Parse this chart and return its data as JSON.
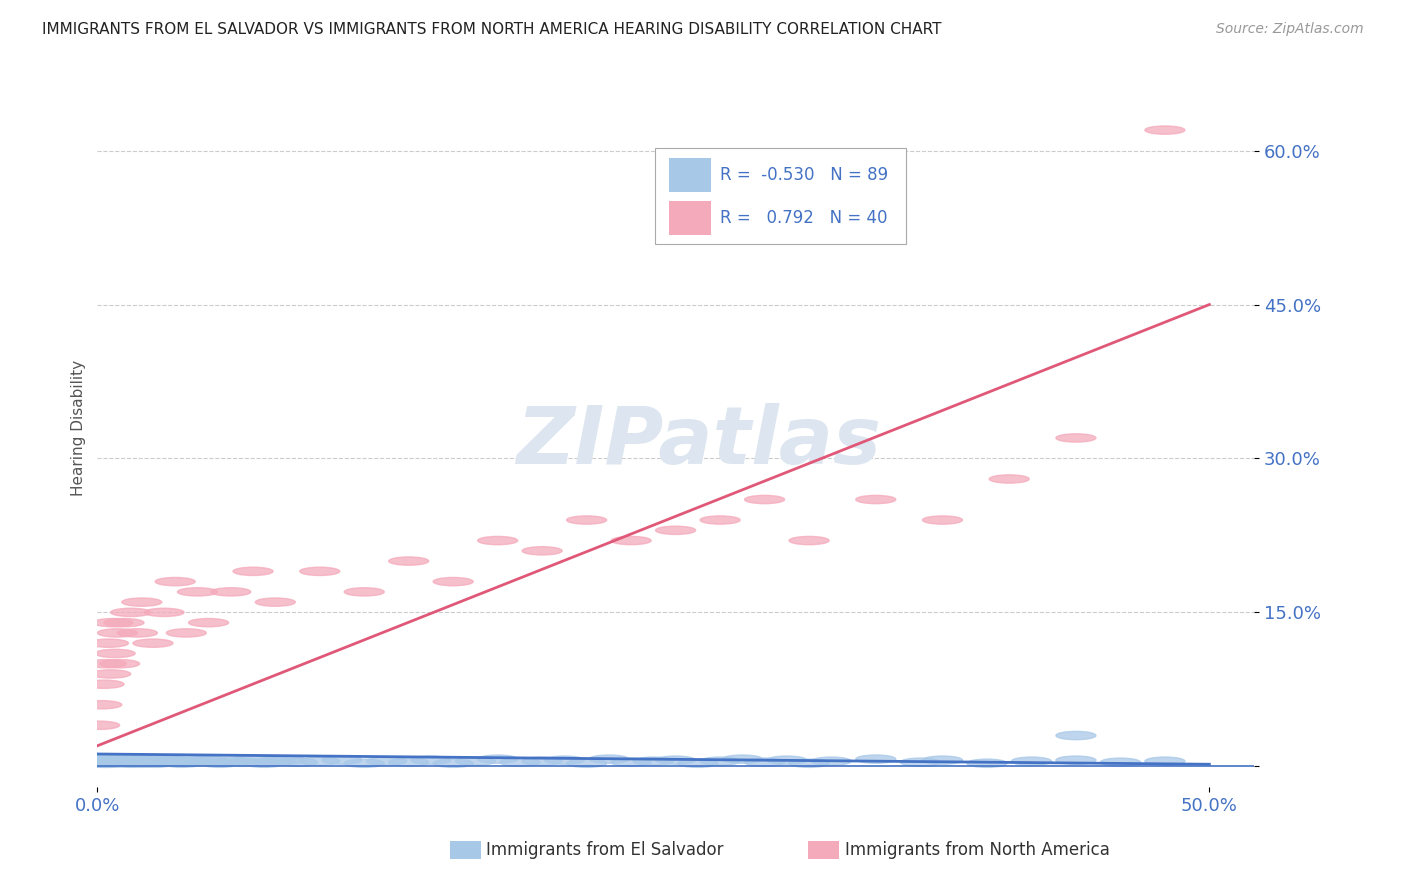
{
  "title": "IMMIGRANTS FROM EL SALVADOR VS IMMIGRANTS FROM NORTH AMERICA HEARING DISABILITY CORRELATION CHART",
  "source": "Source: ZipAtlas.com",
  "xlabel_bottom": "Immigrants from El Salvador",
  "xlabel_bottom2": "Immigrants from North America",
  "ylabel": "Hearing Disability",
  "xlim": [
    0.0,
    0.52
  ],
  "ylim": [
    -0.02,
    0.68
  ],
  "xticks": [
    0.0,
    0.5
  ],
  "yticks": [
    0.0,
    0.15,
    0.3,
    0.45,
    0.6
  ],
  "ytick_labels": [
    "",
    "15.0%",
    "30.0%",
    "45.0%",
    "60.0%"
  ],
  "xtick_labels": [
    "0.0%",
    "50.0%"
  ],
  "grid_yticks": [
    0.15,
    0.3,
    0.45,
    0.6
  ],
  "blue_R": -0.53,
  "blue_N": 89,
  "pink_R": 0.792,
  "pink_N": 40,
  "blue_color": "#a8c8e8",
  "pink_color": "#f4aabb",
  "blue_line_color": "#4472c4",
  "pink_line_color": "#e05878",
  "axis_color": "#4472c4",
  "grid_color": "#cccccc",
  "background_color": "#ffffff",
  "watermark_color": "#dde6f0",
  "blue_scatter_x": [
    0.001,
    0.002,
    0.003,
    0.004,
    0.005,
    0.006,
    0.007,
    0.008,
    0.009,
    0.01,
    0.011,
    0.012,
    0.013,
    0.014,
    0.015,
    0.016,
    0.017,
    0.018,
    0.019,
    0.02,
    0.021,
    0.022,
    0.023,
    0.025,
    0.026,
    0.028,
    0.03,
    0.032,
    0.035,
    0.038,
    0.04,
    0.043,
    0.047,
    0.05,
    0.055,
    0.06,
    0.065,
    0.07,
    0.075,
    0.08,
    0.085,
    0.09,
    0.1,
    0.11,
    0.12,
    0.13,
    0.14,
    0.15,
    0.16,
    0.17,
    0.18,
    0.19,
    0.2,
    0.21,
    0.22,
    0.23,
    0.24,
    0.25,
    0.26,
    0.27,
    0.28,
    0.29,
    0.3,
    0.31,
    0.32,
    0.33,
    0.35,
    0.37,
    0.38,
    0.4,
    0.42,
    0.44,
    0.46,
    0.48,
    0.001,
    0.001,
    0.002,
    0.002,
    0.003,
    0.003,
    0.004,
    0.004,
    0.005,
    0.005,
    0.006,
    0.007,
    0.008,
    0.009,
    0.44
  ],
  "blue_scatter_y": [
    0.005,
    0.004,
    0.006,
    0.005,
    0.003,
    0.007,
    0.005,
    0.004,
    0.006,
    0.005,
    0.004,
    0.007,
    0.005,
    0.003,
    0.006,
    0.004,
    0.005,
    0.007,
    0.003,
    0.005,
    0.006,
    0.004,
    0.005,
    0.006,
    0.003,
    0.005,
    0.004,
    0.006,
    0.005,
    0.003,
    0.007,
    0.004,
    0.005,
    0.006,
    0.003,
    0.005,
    0.004,
    0.007,
    0.003,
    0.005,
    0.006,
    0.004,
    0.005,
    0.006,
    0.003,
    0.005,
    0.004,
    0.006,
    0.003,
    0.005,
    0.007,
    0.004,
    0.005,
    0.006,
    0.003,
    0.007,
    0.004,
    0.005,
    0.006,
    0.003,
    0.005,
    0.007,
    0.004,
    0.006,
    0.003,
    0.005,
    0.007,
    0.004,
    0.006,
    0.003,
    0.005,
    0.006,
    0.004,
    0.005,
    0.004,
    0.005,
    0.003,
    0.006,
    0.004,
    0.005,
    0.006,
    0.003,
    0.007,
    0.004,
    0.005,
    0.006,
    0.004,
    0.005,
    0.03
  ],
  "pink_scatter_x": [
    0.001,
    0.002,
    0.003,
    0.004,
    0.005,
    0.006,
    0.007,
    0.008,
    0.009,
    0.01,
    0.012,
    0.015,
    0.018,
    0.02,
    0.025,
    0.03,
    0.035,
    0.04,
    0.045,
    0.05,
    0.06,
    0.07,
    0.08,
    0.1,
    0.12,
    0.14,
    0.16,
    0.18,
    0.2,
    0.22,
    0.24,
    0.26,
    0.28,
    0.3,
    0.32,
    0.35,
    0.38,
    0.41,
    0.44,
    0.48
  ],
  "pink_scatter_y": [
    0.04,
    0.06,
    0.08,
    0.1,
    0.12,
    0.09,
    0.14,
    0.11,
    0.13,
    0.1,
    0.14,
    0.15,
    0.13,
    0.16,
    0.12,
    0.15,
    0.18,
    0.13,
    0.17,
    0.14,
    0.17,
    0.19,
    0.16,
    0.19,
    0.17,
    0.2,
    0.18,
    0.22,
    0.21,
    0.24,
    0.22,
    0.23,
    0.24,
    0.26,
    0.22,
    0.26,
    0.24,
    0.28,
    0.32,
    0.62
  ],
  "blue_trend_x": [
    0.0,
    0.5
  ],
  "blue_trend_y": [
    0.012,
    0.002
  ],
  "pink_trend_x": [
    0.0,
    0.5
  ],
  "pink_trend_y": [
    0.02,
    0.45
  ]
}
